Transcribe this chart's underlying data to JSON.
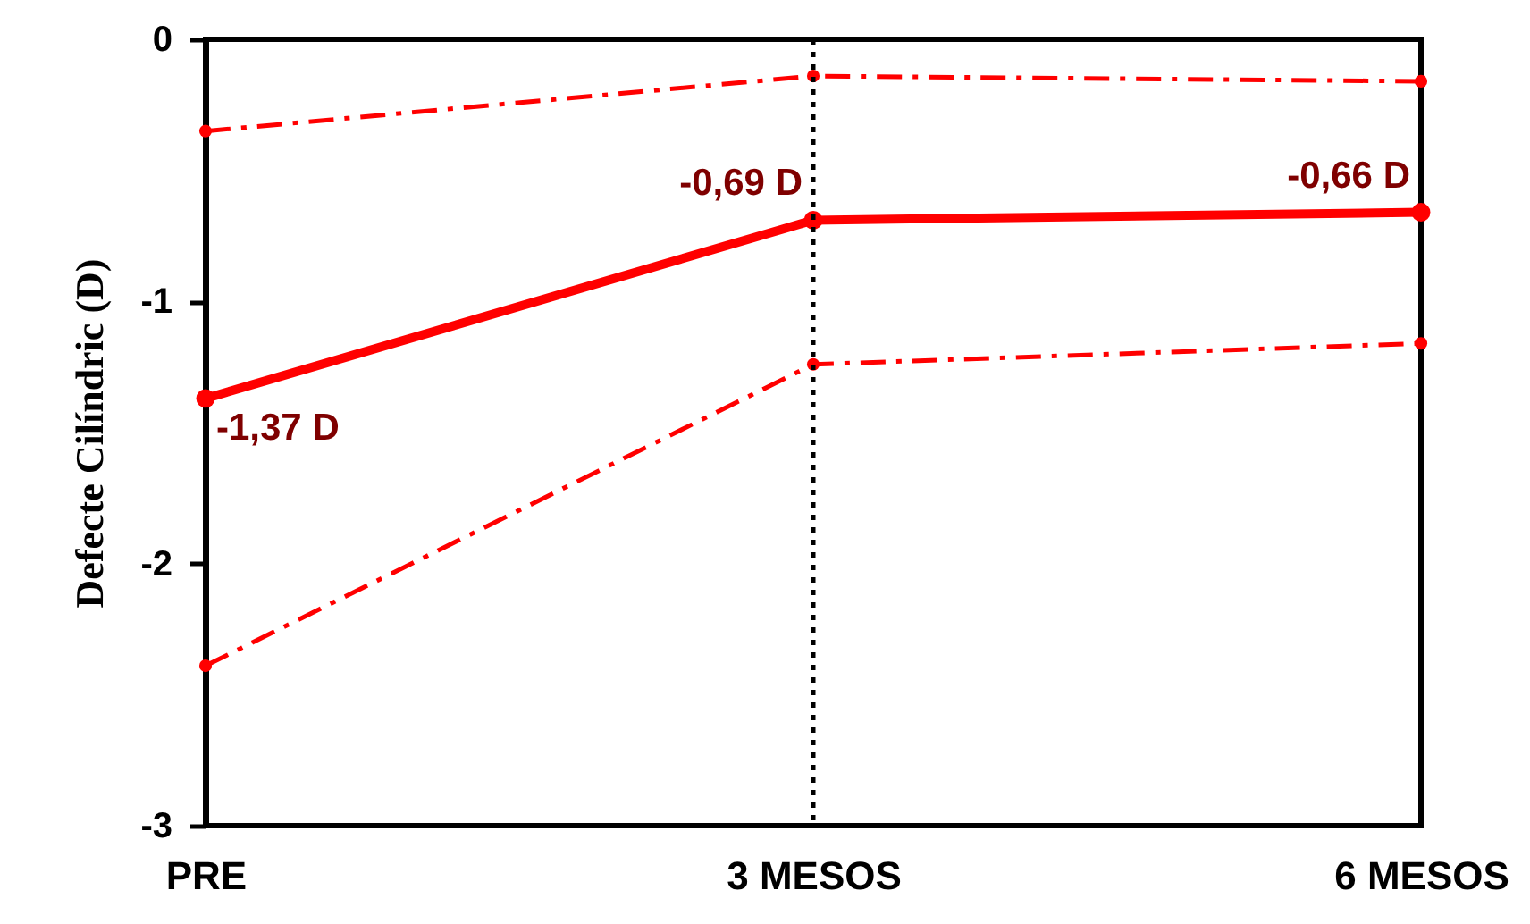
{
  "chart_data": {
    "type": "line",
    "ylabel": "Defecte Cilíndric (D)",
    "categories": [
      "PRE",
      "3 MESOS",
      "6 MESOS"
    ],
    "series": [
      {
        "color": "#ff0000",
        "values": [
          -0.35,
          -0.14,
          -0.16
        ],
        "line_style": "dashed"
      },
      {
        "color": "#ff0000",
        "values": [
          -1.37,
          -0.69,
          -0.66
        ],
        "line_style": "solid",
        "value_labels": [
          "-1,37 D",
          "-0,69 D",
          "-0,66 D"
        ]
      },
      {
        "color": "#ff0000",
        "values": [
          -2.39,
          -1.24,
          -1.16
        ],
        "line_style": "dashed"
      }
    ],
    "ylim": [
      -3,
      0
    ],
    "yticks": [
      0,
      -1,
      -2,
      -3
    ],
    "grid": false,
    "marker": "circle",
    "ref_lines": [
      {
        "axis": "x",
        "value": "3 MESOS",
        "line_style": "dotted",
        "color": "#000000"
      }
    ]
  }
}
